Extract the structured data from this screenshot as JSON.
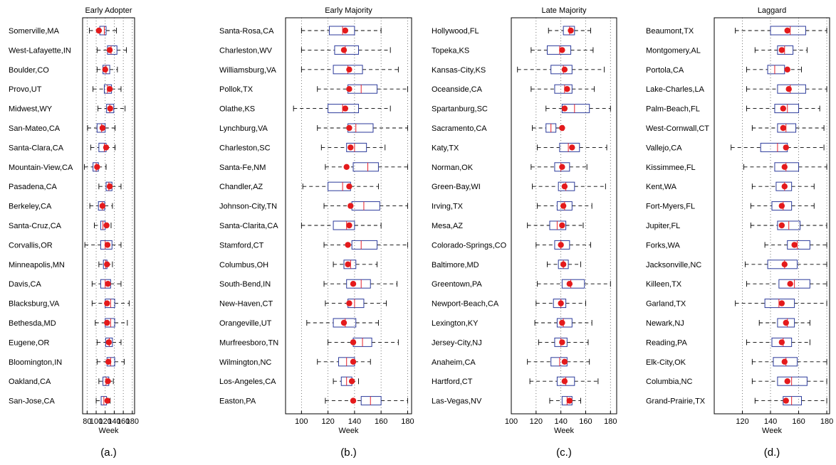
{
  "colors": {
    "box": "#2b3a9b",
    "median": "#e8202a",
    "mean_dot": "#e41a1c",
    "whisker": "#000000",
    "grid": "#555555"
  },
  "chart_data": [
    {
      "type": "boxplot",
      "title": "Early Adopter",
      "caption": "(a.)",
      "xlabel": "Week",
      "xlim": [
        70,
        185
      ],
      "xticks": [
        80,
        100,
        120,
        140,
        160,
        180
      ],
      "grid": "vertical dotted",
      "categories": [
        "Somerville,MA",
        "West-Lafayette,IN",
        "Boulder,CO",
        "Provo,UT",
        "Midwest,WY",
        "San-Mateo,CA",
        "Santa-Clara,CA",
        "Mountain-View,CA",
        "Pasadena,CA",
        "Berkeley,CA",
        "Santa-Cruz,CA",
        "Corvallis,OR",
        "Minneapolis,MN",
        "Davis,CA",
        "Blacksburg,VA",
        "Bethesda,MD",
        "Eugene,OR",
        "Bloomington,IN",
        "Oakland,CA",
        "San-Jose,CA"
      ],
      "boxes": [
        {
          "wl": 85,
          "q1": 108,
          "med": 118,
          "q3": 122,
          "wh": 145,
          "mean": 106
        },
        {
          "wl": 102,
          "q1": 125,
          "med": 133,
          "q3": 146,
          "wh": 167,
          "mean": 130
        },
        {
          "wl": 102,
          "q1": 115,
          "med": 122,
          "q3": 130,
          "wh": 147,
          "mean": 120
        },
        {
          "wl": 93,
          "q1": 118,
          "med": 125,
          "q3": 134,
          "wh": 155,
          "mean": 130
        },
        {
          "wl": 104,
          "q1": 123,
          "med": 130,
          "q3": 139,
          "wh": 164,
          "mean": 131
        },
        {
          "wl": 81,
          "q1": 102,
          "med": 112,
          "q3": 120,
          "wh": 142,
          "mean": 114
        },
        {
          "wl": 88,
          "q1": 106,
          "med": 118,
          "q3": 122,
          "wh": 142,
          "mean": 122
        },
        {
          "wl": 74,
          "q1": 93,
          "med": 100,
          "q3": 105,
          "wh": 122,
          "mean": 102
        },
        {
          "wl": 106,
          "q1": 122,
          "med": 128,
          "q3": 135,
          "wh": 155,
          "mean": 130
        },
        {
          "wl": 86,
          "q1": 105,
          "med": 114,
          "q3": 119,
          "wh": 136,
          "mean": 114
        },
        {
          "wl": 96,
          "q1": 110,
          "med": 115,
          "q3": 120,
          "wh": 133,
          "mean": 123
        },
        {
          "wl": 75,
          "q1": 110,
          "med": 120,
          "q3": 135,
          "wh": 155,
          "mean": 125
        },
        {
          "wl": 106,
          "q1": 116,
          "med": 121,
          "q3": 124,
          "wh": 136,
          "mean": 124
        },
        {
          "wl": 91,
          "q1": 110,
          "med": 120,
          "q3": 132,
          "wh": 155,
          "mean": 126
        },
        {
          "wl": 91,
          "q1": 120,
          "med": 132,
          "q3": 141,
          "wh": 173,
          "mean": 124
        },
        {
          "wl": 98,
          "q1": 120,
          "med": 132,
          "q3": 141,
          "wh": 169,
          "mean": 124
        },
        {
          "wl": 102,
          "q1": 121,
          "med": 129,
          "q3": 136,
          "wh": 155,
          "mean": 128
        },
        {
          "wl": 102,
          "q1": 124,
          "med": 132,
          "q3": 141,
          "wh": 162,
          "mean": 127
        },
        {
          "wl": 106,
          "q1": 115,
          "med": 122,
          "q3": 128,
          "wh": 138,
          "mean": 126
        },
        {
          "wl": 100,
          "q1": 111,
          "med": 117,
          "q3": 123,
          "wh": 131,
          "mean": 125
        }
      ]
    },
    {
      "type": "boxplot",
      "title": "Early Majority",
      "caption": "(b.)",
      "xlabel": "Week",
      "xlim": [
        88,
        183
      ],
      "xticks": [
        100,
        120,
        140,
        160,
        180
      ],
      "grid": "vertical dotted",
      "categories": [
        "Santa-Rosa,CA",
        "Charleston,WV",
        "Williamsburg,VA",
        "Pollok,TX",
        "Olathe,KS",
        "Lynchburg,VA",
        "Charleston,SC",
        "Santa-Fe,NM",
        "Chandler,AZ",
        "Johnson-City,TN",
        "Santa-Clarita,CA",
        "Stamford,CT",
        "Columbus,OH",
        "South-Bend,IN",
        "New-Haven,CT",
        "Orangeville,UT",
        "Murfreesboro,TN",
        "Wilmington,NC",
        "Los-Angeles,CA",
        "Easton,PA"
      ],
      "boxes": [
        {
          "wl": 100,
          "q1": 121,
          "med": 131,
          "q3": 140,
          "wh": 160,
          "mean": 133
        },
        {
          "wl": 100,
          "q1": 125,
          "med": 133,
          "q3": 143,
          "wh": 167,
          "mean": 132
        },
        {
          "wl": 100,
          "q1": 124,
          "med": 135,
          "q3": 146,
          "wh": 173,
          "mean": 136
        },
        {
          "wl": 112,
          "q1": 135,
          "med": 145,
          "q3": 157,
          "wh": 180,
          "mean": 136
        },
        {
          "wl": 94,
          "q1": 120,
          "med": 131,
          "q3": 143,
          "wh": 167,
          "mean": 133
        },
        {
          "wl": 112,
          "q1": 135,
          "med": 141,
          "q3": 154,
          "wh": 180,
          "mean": 136
        },
        {
          "wl": 115,
          "q1": 134,
          "med": 140,
          "q3": 149,
          "wh": 163,
          "mean": 137
        },
        {
          "wl": 118,
          "q1": 139,
          "med": 150,
          "q3": 158,
          "wh": 180,
          "mean": 134
        },
        {
          "wl": 101,
          "q1": 120,
          "med": 131,
          "q3": 137,
          "wh": 158,
          "mean": 136
        },
        {
          "wl": 117,
          "q1": 138,
          "med": 147,
          "q3": 159,
          "wh": 180,
          "mean": 137
        },
        {
          "wl": 100,
          "q1": 124,
          "med": 134,
          "q3": 140,
          "wh": 160,
          "mean": 136
        },
        {
          "wl": 117,
          "q1": 138,
          "med": 145,
          "q3": 157,
          "wh": 180,
          "mean": 135
        },
        {
          "wl": 124,
          "q1": 132,
          "med": 137,
          "q3": 141,
          "wh": 157,
          "mean": 135
        },
        {
          "wl": 117,
          "q1": 134,
          "med": 145,
          "q3": 152,
          "wh": 172,
          "mean": 139
        },
        {
          "wl": 118,
          "q1": 135,
          "med": 140,
          "q3": 147,
          "wh": 164,
          "mean": 136
        },
        {
          "wl": 104,
          "q1": 124,
          "med": 133,
          "q3": 141,
          "wh": 158,
          "mean": 132
        },
        {
          "wl": 120,
          "q1": 139,
          "med": 146,
          "q3": 153,
          "wh": 173,
          "mean": 139
        },
        {
          "wl": 112,
          "q1": 128,
          "med": 134,
          "q3": 140,
          "wh": 152,
          "mean": 139
        },
        {
          "wl": 124,
          "q1": 130,
          "med": 134,
          "q3": 138,
          "wh": 143,
          "mean": 138
        },
        {
          "wl": 118,
          "q1": 145,
          "med": 152,
          "q3": 160,
          "wh": 180,
          "mean": 139
        }
      ]
    },
    {
      "type": "boxplot",
      "title": "Late Majority",
      "caption": "(c.)",
      "xlabel": "Week",
      "xlim": [
        100,
        185
      ],
      "xticks": [
        100,
        120,
        140,
        160,
        180
      ],
      "grid": "vertical dotted",
      "categories": [
        "Hollywood,FL",
        "Topeka,KS",
        "Kansas-City,KS",
        "Oceanside,CA",
        "Spartanburg,SC",
        "Sacramento,CA",
        "Katy,TX",
        "Norman,OK",
        "Green-Bay,WI",
        "Irving,TX",
        "Mesa,AZ",
        "Colorado-Springs,CO",
        "Baltimore,MD",
        "Greentown,PA",
        "Newport-Beach,CA",
        "Lexington,KY",
        "Jersey-City,NJ",
        "Anaheim,CA",
        "Hartford,CT",
        "Las-Vegas,NV"
      ],
      "boxes": [
        {
          "wl": 130,
          "q1": 142,
          "med": 147,
          "q3": 151,
          "wh": 164,
          "mean": 148
        },
        {
          "wl": 116,
          "q1": 129,
          "med": 139,
          "q3": 148,
          "wh": 166,
          "mean": 141
        },
        {
          "wl": 105,
          "q1": 132,
          "med": 142,
          "q3": 149,
          "wh": 175,
          "mean": 143
        },
        {
          "wl": 116,
          "q1": 135,
          "med": 143,
          "q3": 149,
          "wh": 167,
          "mean": 145
        },
        {
          "wl": 128,
          "q1": 141,
          "med": 151,
          "q3": 163,
          "wh": 180,
          "mean": 143
        },
        {
          "wl": 117,
          "q1": 128,
          "med": 132,
          "q3": 136,
          "wh": 142,
          "mean": 141
        },
        {
          "wl": 121,
          "q1": 139,
          "med": 146,
          "q3": 155,
          "wh": 177,
          "mean": 149
        },
        {
          "wl": 116,
          "q1": 135,
          "med": 140,
          "q3": 147,
          "wh": 161,
          "mean": 141
        },
        {
          "wl": 117,
          "q1": 138,
          "med": 144,
          "q3": 151,
          "wh": 176,
          "mean": 143
        },
        {
          "wl": 121,
          "q1": 137,
          "med": 143,
          "q3": 149,
          "wh": 165,
          "mean": 142
        },
        {
          "wl": 113,
          "q1": 131,
          "med": 137,
          "q3": 144,
          "wh": 158,
          "mean": 141
        },
        {
          "wl": 120,
          "q1": 135,
          "med": 140,
          "q3": 147,
          "wh": 164,
          "mean": 140
        },
        {
          "wl": 129,
          "q1": 138,
          "med": 142,
          "q3": 146,
          "wh": 156,
          "mean": 142
        },
        {
          "wl": 121,
          "q1": 141,
          "med": 148,
          "q3": 159,
          "wh": 180,
          "mean": 147
        },
        {
          "wl": 120,
          "q1": 134,
          "med": 140,
          "q3": 144,
          "wh": 160,
          "mean": 140
        },
        {
          "wl": 119,
          "q1": 137,
          "med": 142,
          "q3": 149,
          "wh": 165,
          "mean": 141
        },
        {
          "wl": 122,
          "q1": 135,
          "med": 140,
          "q3": 145,
          "wh": 162,
          "mean": 141
        },
        {
          "wl": 113,
          "q1": 132,
          "med": 139,
          "q3": 145,
          "wh": 163,
          "mean": 143
        },
        {
          "wl": 115,
          "q1": 137,
          "med": 144,
          "q3": 151,
          "wh": 170,
          "mean": 143
        },
        {
          "wl": 131,
          "q1": 141,
          "med": 145,
          "q3": 149,
          "wh": 156,
          "mean": 147
        }
      ]
    },
    {
      "type": "boxplot",
      "title": "Laggard",
      "caption": "(d.)",
      "xlabel": "Week",
      "xlim": [
        100,
        182
      ],
      "xticks": [
        120,
        140,
        160,
        180
      ],
      "grid": "vertical dotted",
      "categories": [
        "Beaumont,TX",
        "Montgomery,AL",
        "Portola,CA",
        "Lake-Charles,LA",
        "Palm-Beach,FL",
        "West-Cornwall,CT",
        "Vallejo,CA",
        "Kissimmee,FL",
        "Kent,WA",
        "Fort-Myers,FL",
        "Jupiter,FL",
        "Forks,WA",
        "Jacksonville,NC",
        "Killeen,TX",
        "Garland,TX",
        "Newark,NJ",
        "Reading,PA",
        "Elk-City,OK",
        "Columbia,NC",
        "Grand-Prairie,TX"
      ],
      "boxes": [
        {
          "wl": 115,
          "q1": 140,
          "med": 154,
          "q3": 165,
          "wh": 180,
          "mean": 152
        },
        {
          "wl": 129,
          "q1": 145,
          "med": 150,
          "q3": 156,
          "wh": 166,
          "mean": 148
        },
        {
          "wl": 123,
          "q1": 138,
          "med": 143,
          "q3": 150,
          "wh": 162,
          "mean": 152
        },
        {
          "wl": 123,
          "q1": 145,
          "med": 154,
          "q3": 165,
          "wh": 180,
          "mean": 153
        },
        {
          "wl": 123,
          "q1": 143,
          "med": 152,
          "q3": 160,
          "wh": 175,
          "mean": 149
        },
        {
          "wl": 127,
          "q1": 145,
          "med": 151,
          "q3": 158,
          "wh": 178,
          "mean": 149
        },
        {
          "wl": 112,
          "q1": 133,
          "med": 145,
          "q3": 152,
          "wh": 178,
          "mean": 151
        },
        {
          "wl": 121,
          "q1": 143,
          "med": 151,
          "q3": 160,
          "wh": 180,
          "mean": 150
        },
        {
          "wl": 127,
          "q1": 144,
          "med": 150,
          "q3": 155,
          "wh": 171,
          "mean": 150
        },
        {
          "wl": 126,
          "q1": 141,
          "med": 149,
          "q3": 155,
          "wh": 171,
          "mean": 148
        },
        {
          "wl": 126,
          "q1": 145,
          "med": 153,
          "q3": 161,
          "wh": 180,
          "mean": 148
        },
        {
          "wl": 136,
          "q1": 152,
          "med": 159,
          "q3": 168,
          "wh": 180,
          "mean": 157
        },
        {
          "wl": 122,
          "q1": 138,
          "med": 150,
          "q3": 159,
          "wh": 180,
          "mean": 150
        },
        {
          "wl": 123,
          "q1": 146,
          "med": 157,
          "q3": 168,
          "wh": 180,
          "mean": 154
        },
        {
          "wl": 115,
          "q1": 136,
          "med": 146,
          "q3": 157,
          "wh": 180,
          "mean": 148
        },
        {
          "wl": 132,
          "q1": 145,
          "med": 152,
          "q3": 157,
          "wh": 168,
          "mean": 151
        },
        {
          "wl": 123,
          "q1": 141,
          "med": 149,
          "q3": 155,
          "wh": 168,
          "mean": 148
        },
        {
          "wl": 127,
          "q1": 142,
          "med": 151,
          "q3": 159,
          "wh": 180,
          "mean": 150
        },
        {
          "wl": 127,
          "q1": 145,
          "med": 155,
          "q3": 166,
          "wh": 180,
          "mean": 152
        },
        {
          "wl": 129,
          "q1": 149,
          "med": 155,
          "q3": 162,
          "wh": 180,
          "mean": 151
        }
      ]
    }
  ]
}
